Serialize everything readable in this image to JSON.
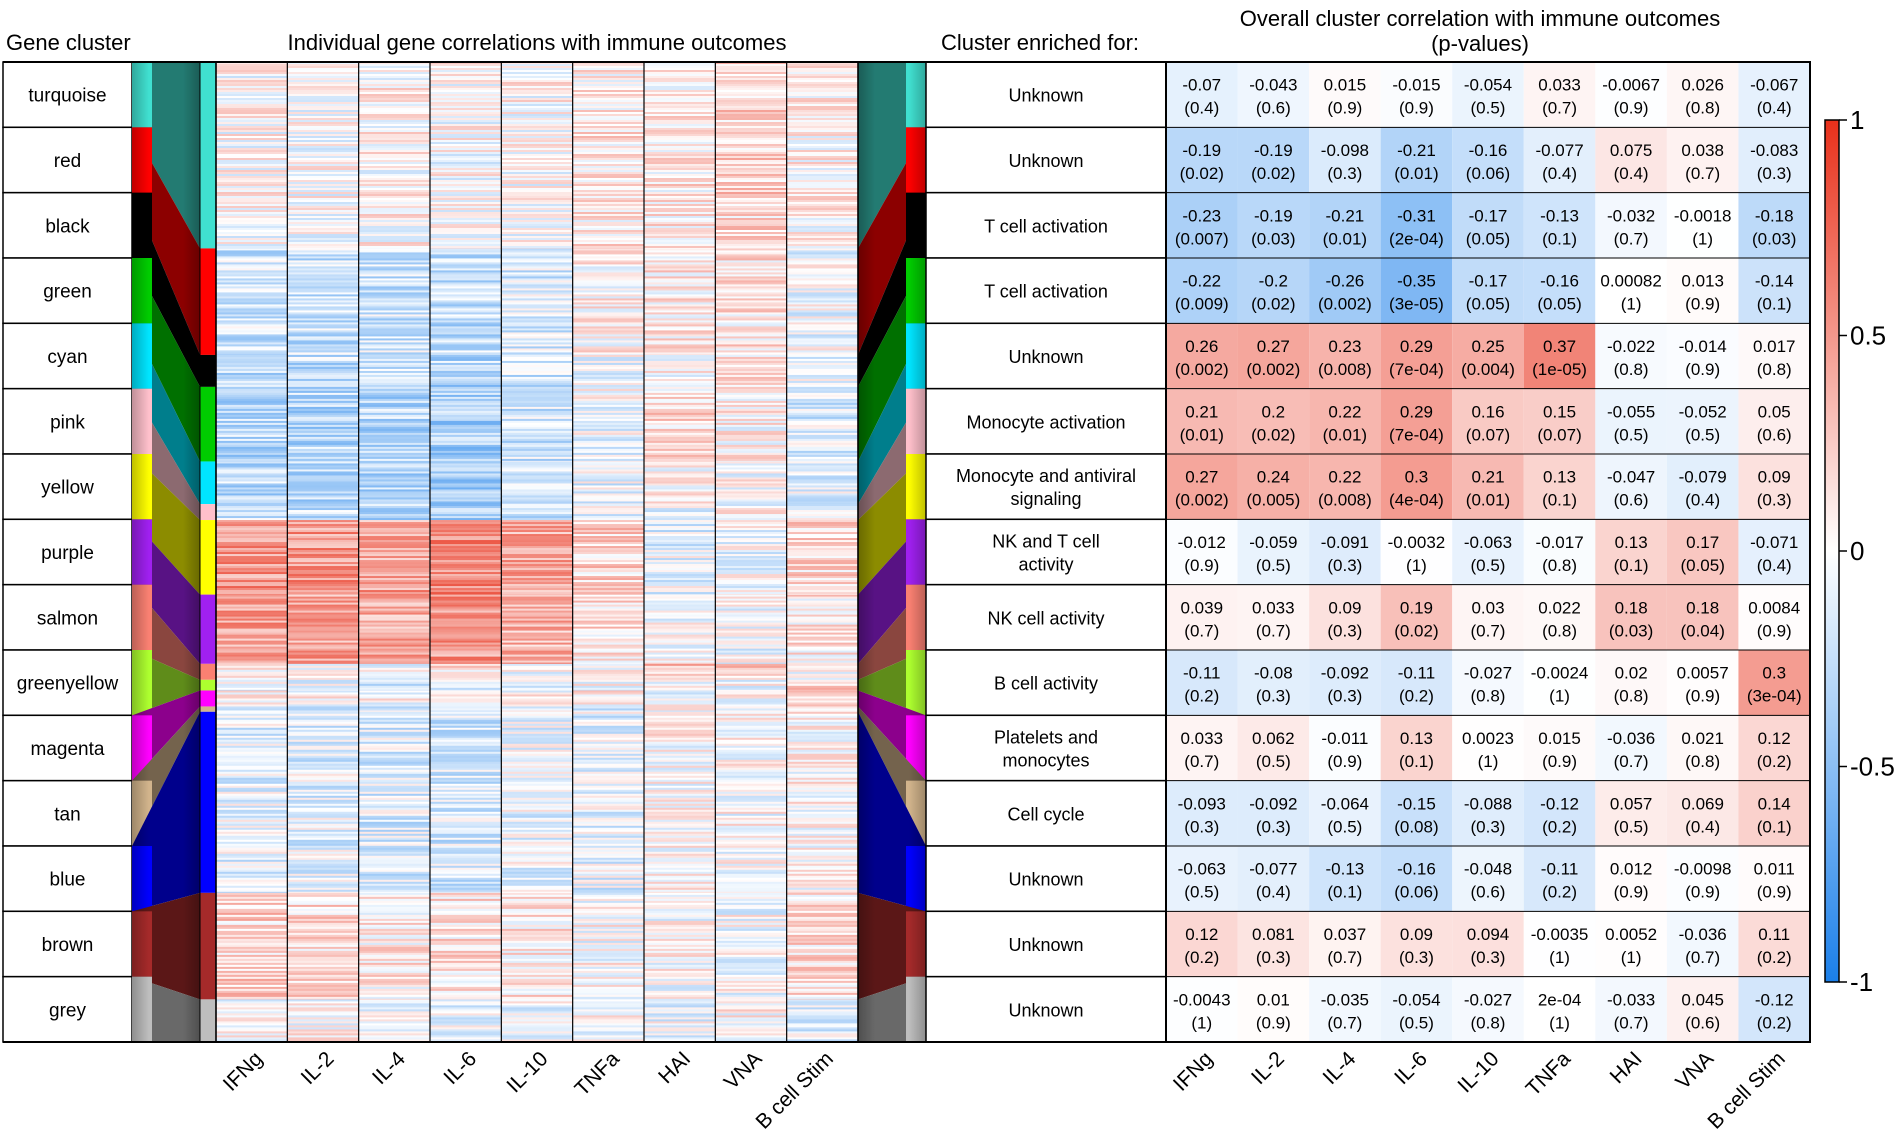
{
  "chart_data": {
    "type": "heatmap",
    "header_left": "Gene cluster",
    "header_mid": "Individual gene correlations with immune outcomes",
    "header_enriched": "Cluster enriched for:",
    "header_right_line1": "Overall cluster correlation with immune outcomes",
    "header_right_line2": "(p-values)",
    "outcomes": [
      "IFNg",
      "IL-2",
      "IL-4",
      "IL-6",
      "IL-10",
      "TNFa",
      "HAI",
      "VNA",
      "B cell Stim"
    ],
    "color_scale": {
      "min": -1,
      "max": 1,
      "low": "#1a7fea",
      "mid": "#ffffff",
      "high": "#e8301a",
      "ticks": [
        "1",
        "0.5",
        "0",
        "-0.5",
        "-1"
      ]
    },
    "clusters": [
      {
        "name": "turquoise",
        "color": "#40e0d0",
        "enriched": [
          "Unknown"
        ],
        "r": [
          "-0.07",
          "-0.043",
          "0.015",
          "-0.015",
          "-0.054",
          "0.033",
          "-0.0067",
          "0.026",
          "-0.067"
        ],
        "p": [
          "(0.4)",
          "(0.6)",
          "(0.9)",
          "(0.9)",
          "(0.5)",
          "(0.7)",
          "(0.9)",
          "(0.8)",
          "(0.4)"
        ]
      },
      {
        "name": "red",
        "color": "#ff0000",
        "enriched": [
          "Unknown"
        ],
        "r": [
          "-0.19",
          "-0.19",
          "-0.098",
          "-0.21",
          "-0.16",
          "-0.077",
          "0.075",
          "0.038",
          "-0.083"
        ],
        "p": [
          "(0.02)",
          "(0.02)",
          "(0.3)",
          "(0.01)",
          "(0.06)",
          "(0.4)",
          "(0.4)",
          "(0.7)",
          "(0.3)"
        ]
      },
      {
        "name": "black",
        "color": "#000000",
        "enriched": [
          "T cell activation"
        ],
        "r": [
          "-0.23",
          "-0.19",
          "-0.21",
          "-0.31",
          "-0.17",
          "-0.13",
          "-0.032",
          "-0.0018",
          "-0.18"
        ],
        "p": [
          "(0.007)",
          "(0.03)",
          "(0.01)",
          "(2e-04)",
          "(0.05)",
          "(0.1)",
          "(0.7)",
          "(1)",
          "(0.03)"
        ]
      },
      {
        "name": "green",
        "color": "#00cc00",
        "enriched": [
          "T cell activation"
        ],
        "r": [
          "-0.22",
          "-0.2",
          "-0.26",
          "-0.35",
          "-0.17",
          "-0.16",
          "0.00082",
          "0.013",
          "-0.14"
        ],
        "p": [
          "(0.009)",
          "(0.02)",
          "(0.002)",
          "(3e-05)",
          "(0.05)",
          "(0.05)",
          "(1)",
          "(0.9)",
          "(0.1)"
        ]
      },
      {
        "name": "cyan",
        "color": "#00e5ff",
        "enriched": [
          "Unknown"
        ],
        "r": [
          "0.26",
          "0.27",
          "0.23",
          "0.29",
          "0.25",
          "0.37",
          "-0.022",
          "-0.014",
          "0.017"
        ],
        "p": [
          "(0.002)",
          "(0.002)",
          "(0.008)",
          "(7e-04)",
          "(0.004)",
          "(1e-05)",
          "(0.8)",
          "(0.9)",
          "(0.8)"
        ]
      },
      {
        "name": "pink",
        "color": "#ffc0cb",
        "enriched": [
          "Monocyte activation"
        ],
        "r": [
          "0.21",
          "0.2",
          "0.22",
          "0.29",
          "0.16",
          "0.15",
          "-0.055",
          "-0.052",
          "0.05"
        ],
        "p": [
          "(0.01)",
          "(0.02)",
          "(0.01)",
          "(7e-04)",
          "(0.07)",
          "(0.07)",
          "(0.5)",
          "(0.5)",
          "(0.6)"
        ]
      },
      {
        "name": "yellow",
        "color": "#ffff00",
        "enriched": [
          "Monocyte and antiviral",
          "signaling"
        ],
        "r": [
          "0.27",
          "0.24",
          "0.22",
          "0.3",
          "0.21",
          "0.13",
          "-0.047",
          "-0.079",
          "0.09"
        ],
        "p": [
          "(0.002)",
          "(0.005)",
          "(0.008)",
          "(4e-04)",
          "(0.01)",
          "(0.1)",
          "(0.6)",
          "(0.4)",
          "(0.3)"
        ]
      },
      {
        "name": "purple",
        "color": "#a020f0",
        "enriched": [
          "NK and T cell",
          "activity"
        ],
        "r": [
          "-0.012",
          "-0.059",
          "-0.091",
          "-0.0032",
          "-0.063",
          "-0.017",
          "0.13",
          "0.17",
          "-0.071"
        ],
        "p": [
          "(0.9)",
          "(0.5)",
          "(0.3)",
          "(1)",
          "(0.5)",
          "(0.8)",
          "(0.1)",
          "(0.05)",
          "(0.4)"
        ]
      },
      {
        "name": "salmon",
        "color": "#fa8072",
        "enriched": [
          "NK cell activity"
        ],
        "r": [
          "0.039",
          "0.033",
          "0.09",
          "0.19",
          "0.03",
          "0.022",
          "0.18",
          "0.18",
          "0.0084"
        ],
        "p": [
          "(0.7)",
          "(0.7)",
          "(0.3)",
          "(0.02)",
          "(0.7)",
          "(0.8)",
          "(0.03)",
          "(0.04)",
          "(0.9)"
        ]
      },
      {
        "name": "greenyellow",
        "color": "#adff2f",
        "enriched": [
          "B cell activity"
        ],
        "r": [
          "-0.11",
          "-0.08",
          "-0.092",
          "-0.11",
          "-0.027",
          "-0.0024",
          "0.02",
          "0.0057",
          "0.3"
        ],
        "p": [
          "(0.2)",
          "(0.3)",
          "(0.3)",
          "(0.2)",
          "(0.8)",
          "(1)",
          "(0.8)",
          "(0.9)",
          "(3e-04)"
        ]
      },
      {
        "name": "magenta",
        "color": "#ff00ff",
        "enriched": [
          "Platelets and",
          "monocytes"
        ],
        "r": [
          "0.033",
          "0.062",
          "-0.011",
          "0.13",
          "0.0023",
          "0.015",
          "-0.036",
          "0.021",
          "0.12"
        ],
        "p": [
          "(0.7)",
          "(0.5)",
          "(0.9)",
          "(0.1)",
          "(1)",
          "(0.9)",
          "(0.7)",
          "(0.8)",
          "(0.2)"
        ]
      },
      {
        "name": "tan",
        "color": "#d2b48c",
        "enriched": [
          "Cell cycle"
        ],
        "r": [
          "-0.093",
          "-0.092",
          "-0.064",
          "-0.15",
          "-0.088",
          "-0.12",
          "0.057",
          "0.069",
          "0.14"
        ],
        "p": [
          "(0.3)",
          "(0.3)",
          "(0.5)",
          "(0.08)",
          "(0.3)",
          "(0.2)",
          "(0.5)",
          "(0.4)",
          "(0.1)"
        ]
      },
      {
        "name": "blue",
        "color": "#0000ff",
        "enriched": [
          "Unknown"
        ],
        "r": [
          "-0.063",
          "-0.077",
          "-0.13",
          "-0.16",
          "-0.048",
          "-0.11",
          "0.012",
          "-0.0098",
          "0.011"
        ],
        "p": [
          "(0.5)",
          "(0.4)",
          "(0.1)",
          "(0.06)",
          "(0.6)",
          "(0.2)",
          "(0.9)",
          "(0.9)",
          "(0.9)"
        ]
      },
      {
        "name": "brown",
        "color": "#a52a2a",
        "enriched": [
          "Unknown"
        ],
        "r": [
          "0.12",
          "0.081",
          "0.037",
          "0.09",
          "0.094",
          "-0.0035",
          "0.0052",
          "-0.036",
          "0.11"
        ],
        "p": [
          "(0.2)",
          "(0.3)",
          "(0.7)",
          "(0.3)",
          "(0.3)",
          "(1)",
          "(1)",
          "(0.7)",
          "(0.2)"
        ]
      },
      {
        "name": "grey",
        "color": "#bebebe",
        "enriched": [
          "Unknown"
        ],
        "r": [
          "-0.0043",
          "0.01",
          "-0.035",
          "-0.054",
          "-0.027",
          "2e-04",
          "-0.033",
          "0.045",
          "-0.12"
        ],
        "p": [
          "(1)",
          "(0.9)",
          "(0.7)",
          "(0.5)",
          "(0.8)",
          "(1)",
          "(0.7)",
          "(0.6)",
          "(0.2)"
        ]
      }
    ],
    "gene_cluster_sizes": [
      35,
      20,
      6,
      14,
      8,
      3,
      14,
      13,
      3,
      2,
      3,
      1,
      34,
      20,
      8
    ],
    "individual_heatmap_tone": [
      [
        0.02,
        0.01,
        0.04,
        0.0,
        0.02,
        0.1,
        0.1,
        0.2,
        0.05
      ],
      [
        -0.2,
        -0.22,
        -0.2,
        -0.25,
        -0.15,
        0.05,
        0.1,
        0.12,
        -0.05
      ],
      [
        -0.25,
        -0.25,
        -0.22,
        -0.32,
        -0.18,
        -0.05,
        0.0,
        0.08,
        -0.12
      ],
      [
        -0.3,
        -0.3,
        -0.3,
        -0.38,
        -0.2,
        -0.05,
        0.15,
        0.05,
        -0.15
      ],
      [
        -0.28,
        -0.28,
        -0.3,
        -0.4,
        -0.22,
        -0.1,
        0.05,
        0.0,
        -0.12
      ],
      [
        -0.25,
        -0.25,
        -0.28,
        -0.35,
        -0.2,
        -0.1,
        -0.05,
        0.0,
        -0.1
      ],
      [
        0.5,
        0.5,
        0.45,
        0.55,
        0.4,
        0.2,
        -0.1,
        -0.05,
        0.15
      ],
      [
        0.45,
        0.45,
        0.4,
        0.5,
        0.35,
        0.15,
        -0.05,
        -0.05,
        0.1
      ],
      [
        0.0,
        -0.05,
        -0.1,
        0.1,
        0.0,
        0.05,
        0.25,
        0.2,
        0.0
      ],
      [
        -0.12,
        -0.1,
        -0.12,
        -0.12,
        -0.05,
        0.0,
        0.05,
        0.0,
        0.3
      ],
      [
        0.05,
        0.05,
        0.0,
        0.1,
        0.0,
        0.05,
        -0.05,
        0.0,
        0.1
      ],
      [
        -0.18,
        -0.18,
        -0.15,
        -0.22,
        -0.12,
        -0.1,
        0.05,
        0.05,
        0.1
      ],
      [
        -0.1,
        -0.12,
        -0.15,
        -0.18,
        -0.08,
        -0.1,
        0.02,
        0.0,
        0.02
      ],
      [
        0.2,
        0.15,
        0.1,
        0.15,
        0.12,
        0.0,
        0.0,
        -0.02,
        0.15
      ],
      [
        0.0,
        0.02,
        -0.05,
        -0.05,
        -0.05,
        0.0,
        -0.05,
        0.05,
        -0.1
      ]
    ]
  }
}
